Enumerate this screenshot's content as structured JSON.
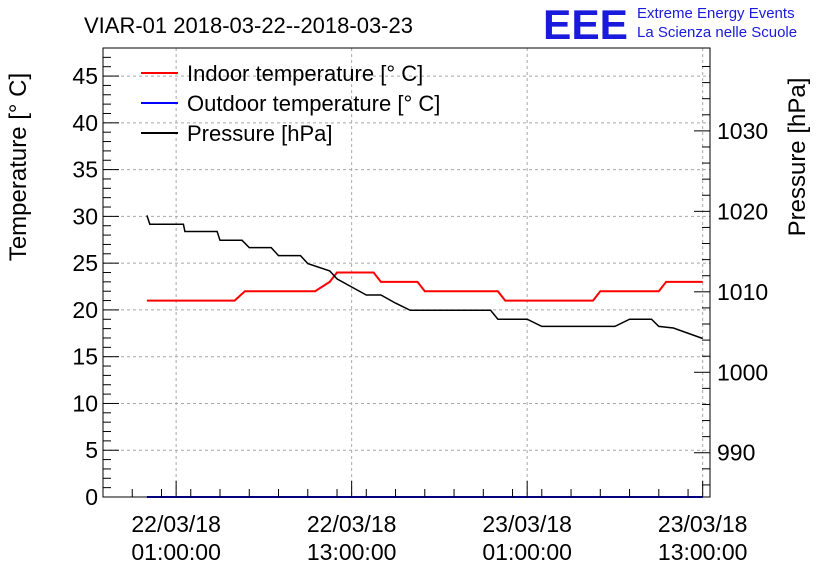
{
  "chart_data": {
    "type": "line",
    "title": "VIAR-01 2018-03-22--2018-03-23",
    "ylabel": "Temperature [° C]",
    "y2label": "Pressure [hPa]",
    "xlabel": "",
    "ylim": [
      0,
      48
    ],
    "y2lim": [
      984.5,
      1040.3
    ],
    "x_range_hours": [
      -5,
      36.5
    ],
    "x_ticks": [
      {
        "hours": 0,
        "date": "22/03/18",
        "time": "01:00:00"
      },
      {
        "hours": 12,
        "date": "22/03/18",
        "time": "13:00:00"
      },
      {
        "hours": 24,
        "date": "23/03/18",
        "time": "01:00:00"
      },
      {
        "hours": 36,
        "date": "23/03/18",
        "time": "13:00:00"
      }
    ],
    "y_ticks": [
      0,
      5,
      10,
      15,
      20,
      25,
      30,
      35,
      40,
      45
    ],
    "y2_ticks": [
      990,
      1000,
      1010,
      1020,
      1030
    ],
    "grid": true,
    "legend_position": "top-left",
    "series": [
      {
        "name": "Indoor temperature [° C]",
        "axis": "left",
        "color": "#ff0000",
        "points": [
          [
            -2,
            21
          ],
          [
            0,
            21
          ],
          [
            2,
            21
          ],
          [
            4,
            21
          ],
          [
            4.7,
            22
          ],
          [
            6,
            22
          ],
          [
            8,
            22
          ],
          [
            9.5,
            22
          ],
          [
            10.5,
            23
          ],
          [
            11,
            24
          ],
          [
            12,
            24
          ],
          [
            13.5,
            24
          ],
          [
            14,
            23
          ],
          [
            15,
            23
          ],
          [
            16.5,
            23
          ],
          [
            17,
            22
          ],
          [
            18,
            22
          ],
          [
            20,
            22
          ],
          [
            22,
            22
          ],
          [
            22.5,
            21
          ],
          [
            24,
            21
          ],
          [
            26,
            21
          ],
          [
            28.5,
            21
          ],
          [
            29,
            22
          ],
          [
            31,
            22
          ],
          [
            33,
            22
          ],
          [
            33.5,
            23
          ],
          [
            35,
            23
          ],
          [
            36,
            23
          ]
        ]
      },
      {
        "name": "Outdoor temperature [° C]",
        "axis": "left",
        "color": "#0000ff",
        "points": [
          [
            -2,
            0
          ],
          [
            36,
            0
          ]
        ]
      },
      {
        "name": "Pressure [hPa]",
        "axis": "right",
        "color": "#000000",
        "points": [
          [
            -2,
            1019.5
          ],
          [
            -1.8,
            1018.4
          ],
          [
            0,
            1018.4
          ],
          [
            0.5,
            1018.4
          ],
          [
            0.6,
            1017.5
          ],
          [
            2,
            1017.5
          ],
          [
            2.8,
            1017.5
          ],
          [
            3,
            1016.4
          ],
          [
            4.5,
            1016.4
          ],
          [
            5,
            1015.5
          ],
          [
            6.5,
            1015.5
          ],
          [
            7,
            1014.5
          ],
          [
            8.5,
            1014.5
          ],
          [
            9,
            1013.5
          ],
          [
            10.5,
            1012.6
          ],
          [
            11,
            1011.6
          ],
          [
            12,
            1010.6
          ],
          [
            13,
            1009.6
          ],
          [
            14,
            1009.6
          ],
          [
            15,
            1008.6
          ],
          [
            16,
            1007.7
          ],
          [
            17.5,
            1007.7
          ],
          [
            20,
            1007.7
          ],
          [
            21.5,
            1007.7
          ],
          [
            22,
            1006.6
          ],
          [
            24,
            1006.6
          ],
          [
            25,
            1005.7
          ],
          [
            27,
            1005.7
          ],
          [
            29.5,
            1005.7
          ],
          [
            30,
            1005.7
          ],
          [
            31,
            1006.6
          ],
          [
            32.5,
            1006.6
          ],
          [
            33,
            1005.7
          ],
          [
            34,
            1005.5
          ],
          [
            36,
            1004.2
          ]
        ]
      }
    ]
  },
  "logo": {
    "mark": "EEE",
    "line1": "Extreme Energy Events",
    "line2": "La Scienza nelle Scuole",
    "color": "#1a1adc"
  }
}
